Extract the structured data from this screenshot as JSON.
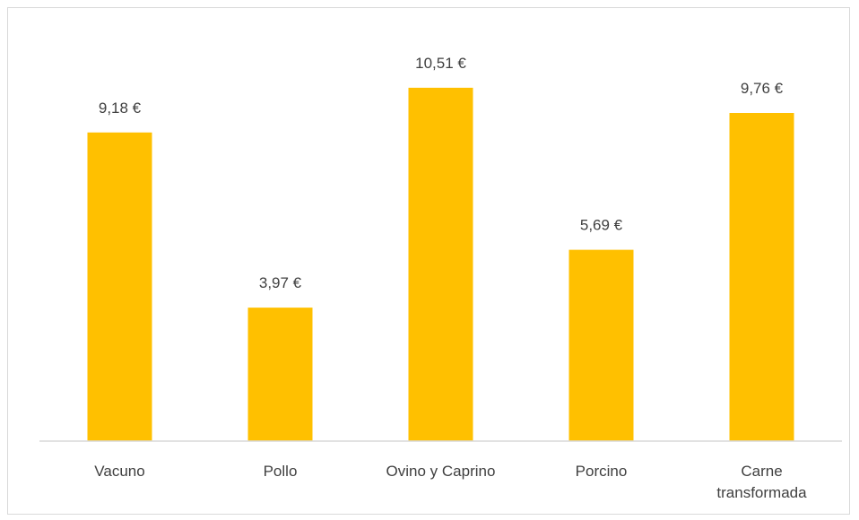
{
  "chart_data": {
    "type": "bar",
    "categories": [
      "Vacuno",
      "Pollo",
      "Ovino y Caprino",
      "Porcino",
      "Carne\ntransformada"
    ],
    "values": [
      9.18,
      3.97,
      10.51,
      5.69,
      9.76
    ],
    "data_labels": [
      "9,18 €",
      "3,97 €",
      "10,51 €",
      "5,69 €",
      "9,76 €"
    ],
    "title": "",
    "xlabel": "",
    "ylabel": "",
    "ylim": [
      0,
      12
    ],
    "grid": false,
    "legend": "none",
    "bar_color": "#FFC000",
    "axis_color": "#d9d9d9",
    "text_color": "#404040"
  }
}
